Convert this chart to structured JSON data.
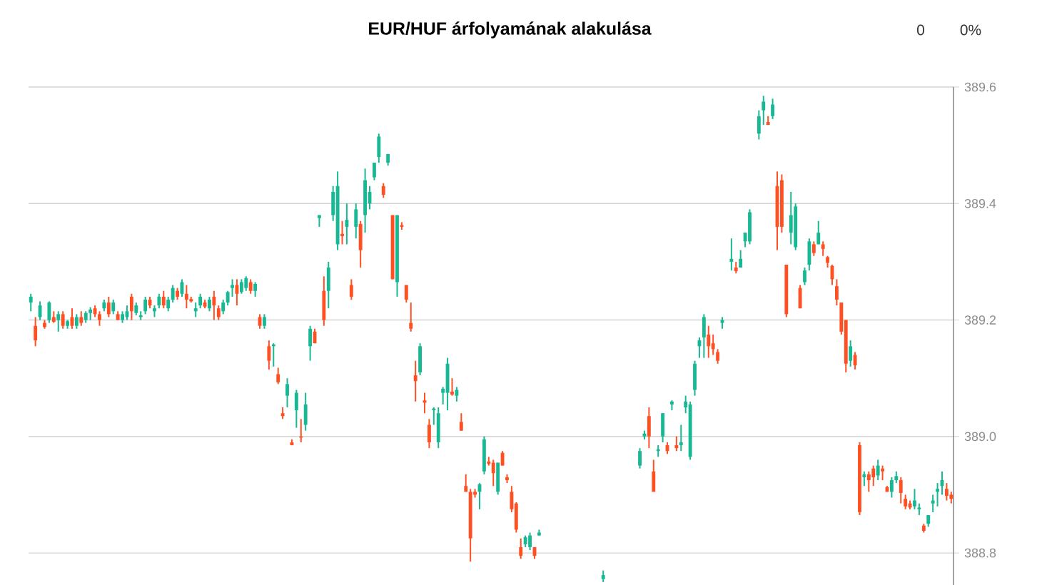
{
  "chart_data": {
    "type": "candlestick",
    "title": "EUR/HUF árfolyamának alakulása",
    "annotations": [
      "0",
      "0%"
    ],
    "ylim": [
      388.745,
      389.6
    ],
    "yticks": [
      388.8,
      {
        "value": 389,
        "label": "389.0"
      },
      389.2,
      389.4,
      389.6
    ],
    "grid": "y",
    "tick_labels": "y",
    "ohlc": [
      [
        389.23,
        389.245,
        389.215,
        389.24
      ],
      [
        389.19,
        389.205,
        389.155,
        389.165
      ],
      [
        389.205,
        389.232,
        389.2,
        389.225
      ],
      [
        389.195,
        389.2,
        389.185,
        389.188
      ],
      [
        389.2,
        389.232,
        389.195,
        389.23
      ],
      [
        389.205,
        389.215,
        389.195,
        389.197
      ],
      [
        389.2,
        389.215,
        389.18,
        389.21
      ],
      [
        389.21,
        389.215,
        389.185,
        389.19
      ],
      [
        389.19,
        389.2,
        389.185,
        389.198
      ],
      [
        389.205,
        389.22,
        389.185,
        389.19
      ],
      [
        389.19,
        389.21,
        389.185,
        389.205
      ],
      [
        389.205,
        389.215,
        389.19,
        389.195
      ],
      [
        389.2,
        389.215,
        389.195,
        389.212
      ],
      [
        389.212,
        389.222,
        389.2,
        389.218
      ],
      [
        389.22,
        389.225,
        389.205,
        389.21
      ],
      [
        389.21,
        389.215,
        389.19,
        389.2
      ],
      [
        389.22,
        389.235,
        389.215,
        389.23
      ],
      [
        389.23,
        389.24,
        389.205,
        389.21
      ],
      [
        389.215,
        389.235,
        389.21,
        389.23
      ],
      [
        389.21,
        389.215,
        389.2,
        389.2
      ],
      [
        389.2,
        389.215,
        389.195,
        389.21
      ],
      [
        389.205,
        389.225,
        389.2,
        389.215
      ],
      [
        389.24,
        389.245,
        389.2,
        389.215
      ],
      [
        389.212,
        389.23,
        389.208,
        389.225
      ],
      [
        389.205,
        389.215,
        389.2,
        389.208
      ],
      [
        389.215,
        389.24,
        389.21,
        389.235
      ],
      [
        389.235,
        389.24,
        389.22,
        389.225
      ],
      [
        389.215,
        389.225,
        389.205,
        389.22
      ],
      [
        389.225,
        389.245,
        389.22,
        389.24
      ],
      [
        389.24,
        389.25,
        389.22,
        389.225
      ],
      [
        389.22,
        389.24,
        389.215,
        389.235
      ],
      [
        389.235,
        389.26,
        389.23,
        389.255
      ],
      [
        389.25,
        389.255,
        389.235,
        389.24
      ],
      [
        389.245,
        389.27,
        389.24,
        389.265
      ],
      [
        389.245,
        389.26,
        389.22,
        389.235
      ],
      [
        389.236,
        389.24,
        389.23,
        389.232
      ],
      [
        389.215,
        389.23,
        389.205,
        389.22
      ],
      [
        389.225,
        389.245,
        389.22,
        389.24
      ],
      [
        389.23,
        389.235,
        389.22,
        389.223
      ],
      [
        389.22,
        389.24,
        389.215,
        389.235
      ],
      [
        389.24,
        389.25,
        389.2,
        389.225
      ],
      [
        389.22,
        389.225,
        389.2,
        389.205
      ],
      [
        389.215,
        389.235,
        389.21,
        389.23
      ],
      [
        389.23,
        389.25,
        389.225,
        389.248
      ],
      [
        389.255,
        389.27,
        389.24,
        389.26
      ],
      [
        389.26,
        389.27,
        389.225,
        389.245
      ],
      [
        389.248,
        389.27,
        389.245,
        389.265
      ],
      [
        389.255,
        389.275,
        389.25,
        389.272
      ],
      [
        389.265,
        389.27,
        389.245,
        389.25
      ],
      [
        389.25,
        389.265,
        389.24,
        389.262
      ],
      [
        389.205,
        389.21,
        389.185,
        389.19
      ],
      [
        389.19,
        389.21,
        389.185,
        389.205
      ],
      [
        389.155,
        389.165,
        389.115,
        389.13
      ],
      [
        389.155,
        389.16,
        389.12,
        389.158
      ],
      [
        389.107,
        389.118,
        389.09,
        389.093
      ],
      [
        389.04,
        389.05,
        389.03,
        389.035
      ],
      [
        389.07,
        389.1,
        389.05,
        389.09
      ],
      [
        388.99,
        388.995,
        388.985,
        388.985
      ],
      [
        389.045,
        389.08,
        389.015,
        389.075
      ],
      [
        389.0,
        389.03,
        388.99,
        388.998
      ],
      [
        389.02,
        389.075,
        389.01,
        389.055
      ],
      [
        389.155,
        389.19,
        389.13,
        389.185
      ],
      [
        389.18,
        389.185,
        389.16,
        389.16
      ],
      [
        389.375,
        389.38,
        389.36,
        389.38
      ],
      [
        389.25,
        389.275,
        389.19,
        389.2
      ],
      [
        389.25,
        389.3,
        389.22,
        389.29
      ],
      [
        389.38,
        389.43,
        389.37,
        389.42
      ],
      [
        389.33,
        389.455,
        389.32,
        389.43
      ],
      [
        389.348,
        389.37,
        389.33,
        389.344
      ],
      [
        389.36,
        389.4,
        389.33,
        389.372
      ],
      [
        389.26,
        389.27,
        389.235,
        389.24
      ],
      [
        389.36,
        389.4,
        389.34,
        389.39
      ],
      [
        389.365,
        389.37,
        389.29,
        389.32
      ],
      [
        389.38,
        389.46,
        389.35,
        389.44
      ],
      [
        389.4,
        389.43,
        389.39,
        389.42
      ],
      [
        389.445,
        389.47,
        389.44,
        389.47
      ],
      [
        389.48,
        389.52,
        389.47,
        389.515
      ],
      [
        389.43,
        389.435,
        389.41,
        389.415
      ],
      [
        389.47,
        389.485,
        389.465,
        389.485
      ],
      [
        389.38,
        389.38,
        389.27,
        389.27
      ],
      [
        389.265,
        389.38,
        389.24,
        389.38
      ],
      [
        389.363,
        389.368,
        389.355,
        389.36
      ],
      [
        389.26,
        389.26,
        389.23,
        389.235
      ],
      [
        389.195,
        389.23,
        389.18,
        389.185
      ],
      [
        389.105,
        389.13,
        389.06,
        389.095
      ],
      [
        389.11,
        389.16,
        389.105,
        389.155
      ],
      [
        389.062,
        389.075,
        389.04,
        389.058
      ],
      [
        389.02,
        389.03,
        388.98,
        388.99
      ],
      [
        389.045,
        389.05,
        389.02,
        389.048
      ],
      [
        388.99,
        389.05,
        388.98,
        389.04
      ],
      [
        389.075,
        389.085,
        389.055,
        389.082
      ],
      [
        389.075,
        389.135,
        389.045,
        389.125
      ],
      [
        389.077,
        389.1,
        389.07,
        389.072
      ],
      [
        389.07,
        389.085,
        389.06,
        389.08
      ],
      [
        389.025,
        389.04,
        389.01,
        389.01
      ],
      [
        388.915,
        388.935,
        388.905,
        388.905
      ],
      [
        388.905,
        388.91,
        388.785,
        388.825
      ],
      [
        388.905,
        388.91,
        388.895,
        388.9
      ],
      [
        388.905,
        388.92,
        388.875,
        388.918
      ],
      [
        388.94,
        389.0,
        388.935,
        388.995
      ],
      [
        388.957,
        388.965,
        388.95,
        388.953
      ],
      [
        388.955,
        388.96,
        388.915,
        388.937
      ],
      [
        388.905,
        388.955,
        388.9,
        388.955
      ],
      [
        388.972,
        388.975,
        388.95,
        388.95
      ],
      [
        388.93,
        388.935,
        388.92,
        388.925
      ],
      [
        388.905,
        388.915,
        388.87,
        388.875
      ],
      [
        388.885,
        388.887,
        388.835,
        388.84
      ],
      [
        388.81,
        388.825,
        388.79,
        388.795
      ],
      [
        388.815,
        388.83,
        388.81,
        388.827
      ],
      [
        388.81,
        388.835,
        388.805,
        388.83
      ],
      [
        388.81,
        388.81,
        388.79,
        388.795
      ],
      [
        388.83,
        388.84,
        388.83,
        388.835
      ],
      null,
      null,
      null,
      null,
      null,
      null,
      null,
      null,
      null,
      null,
      null,
      null,
      null,
      [
        388.755,
        388.77,
        388.75,
        388.762
      ],
      null,
      null,
      null,
      null,
      null,
      null,
      null,
      [
        388.95,
        388.98,
        388.945,
        388.975
      ],
      [
        389.0,
        389.01,
        388.995,
        389.005
      ],
      [
        389.035,
        389.05,
        388.98,
        389.0
      ],
      [
        388.94,
        388.96,
        388.905,
        388.905
      ],
      [
        388.975,
        388.985,
        388.965,
        388.978
      ],
      [
        389.0,
        389.04,
        388.99,
        389.04
      ],
      [
        388.985,
        388.99,
        388.97,
        388.975
      ],
      [
        389.055,
        389.062,
        389.045,
        389.06
      ],
      [
        388.985,
        389.0,
        388.975,
        388.98
      ],
      [
        388.985,
        389.02,
        388.975,
        388.99
      ],
      [
        389.05,
        389.07,
        389.04,
        389.06
      ],
      [
        388.965,
        389.06,
        388.96,
        389.055
      ],
      [
        389.08,
        389.13,
        389.07,
        389.125
      ],
      [
        389.155,
        389.17,
        389.135,
        389.165
      ],
      [
        389.17,
        389.21,
        389.135,
        389.205
      ],
      [
        389.175,
        389.19,
        389.135,
        389.155
      ],
      [
        389.16,
        389.175,
        389.14,
        389.15
      ],
      [
        389.145,
        389.15,
        389.125,
        389.13
      ],
      [
        389.195,
        389.205,
        389.185,
        389.2
      ],
      null,
      [
        389.3,
        389.34,
        389.285,
        389.305
      ],
      [
        389.29,
        389.3,
        389.28,
        389.284
      ],
      [
        389.29,
        389.32,
        389.29,
        389.305
      ],
      [
        389.335,
        389.35,
        389.325,
        389.35
      ],
      [
        389.335,
        389.39,
        389.33,
        389.385
      ],
      null,
      [
        389.52,
        389.56,
        389.51,
        389.55
      ],
      [
        389.56,
        389.585,
        389.535,
        389.575
      ],
      [
        389.54,
        389.55,
        389.535,
        389.535
      ],
      [
        389.55,
        389.58,
        389.545,
        389.57
      ],
      [
        389.43,
        389.455,
        389.32,
        389.36
      ],
      [
        389.44,
        389.45,
        389.35,
        389.36
      ],
      [
        389.295,
        389.295,
        389.205,
        389.21
      ],
      [
        389.35,
        389.42,
        389.33,
        389.38
      ],
      [
        389.325,
        389.4,
        389.32,
        389.395
      ],
      [
        389.255,
        389.26,
        389.22,
        389.22
      ],
      [
        389.265,
        389.29,
        389.26,
        389.285
      ],
      [
        389.295,
        389.34,
        389.285,
        389.335
      ],
      [
        389.33,
        389.335,
        389.31,
        389.315
      ],
      [
        389.33,
        389.37,
        389.33,
        389.35
      ],
      [
        389.33,
        389.335,
        389.31,
        389.322
      ],
      [
        389.308,
        389.31,
        389.29,
        389.298
      ],
      [
        389.293,
        389.295,
        389.26,
        389.27
      ],
      [
        389.258,
        389.27,
        389.225,
        389.235
      ],
      [
        389.23,
        389.23,
        389.175,
        389.18
      ],
      [
        389.2,
        389.2,
        389.11,
        389.125
      ],
      [
        389.13,
        389.165,
        389.12,
        389.155
      ],
      [
        389.14,
        389.145,
        389.115,
        389.122
      ],
      [
        388.985,
        388.99,
        388.865,
        388.87
      ],
      [
        388.93,
        388.94,
        388.915,
        388.935
      ],
      [
        388.935,
        388.94,
        388.905,
        388.925
      ],
      [
        388.945,
        388.95,
        388.915,
        388.93
      ],
      [
        388.933,
        388.96,
        388.925,
        388.95
      ],
      [
        388.945,
        388.95,
        388.925,
        388.94
      ],
      [
        388.913,
        388.915,
        388.905,
        388.905
      ],
      [
        388.905,
        388.93,
        388.895,
        388.925
      ],
      [
        388.925,
        388.94,
        388.92,
        388.932
      ],
      [
        388.925,
        388.93,
        388.885,
        388.903
      ],
      [
        388.893,
        388.9,
        388.875,
        388.88
      ],
      [
        388.885,
        388.89,
        388.875,
        388.878
      ],
      [
        388.88,
        388.91,
        388.875,
        388.89
      ],
      [
        388.875,
        388.885,
        388.865,
        388.878
      ],
      [
        388.847,
        388.85,
        388.835,
        388.838
      ],
      [
        388.85,
        388.865,
        388.845,
        388.865
      ],
      [
        388.885,
        388.9,
        388.87,
        388.89
      ],
      [
        388.905,
        388.92,
        388.88,
        388.91
      ],
      [
        388.915,
        388.94,
        388.9,
        388.925
      ],
      [
        388.91,
        388.92,
        388.89,
        388.898
      ],
      [
        388.9,
        388.905,
        388.885,
        388.893
      ]
    ],
    "categories": [
      null,
      null,
      null,
      null,
      null,
      null,
      null,
      null,
      null,
      null,
      null,
      null,
      null,
      null,
      null,
      null,
      null,
      null,
      null,
      null,
      null,
      null,
      null,
      null,
      null,
      null,
      null,
      null,
      null,
      null,
      null,
      null,
      null,
      null,
      null,
      null,
      null,
      null,
      null,
      null,
      null,
      null,
      null,
      null,
      null,
      null,
      null,
      null,
      null,
      null,
      null,
      null,
      null,
      null,
      null,
      null,
      null,
      null,
      null,
      null,
      null,
      null,
      null,
      null,
      null,
      null,
      null,
      null,
      null,
      null,
      null,
      null,
      null,
      null,
      null,
      null,
      null,
      null,
      null,
      null,
      null,
      null,
      null,
      null,
      null,
      null,
      null,
      null,
      null,
      null,
      null,
      null,
      null,
      null,
      null,
      null,
      null,
      null,
      null,
      null,
      null,
      null,
      null,
      null,
      null,
      null,
      null,
      null,
      null,
      null,
      null,
      null,
      null,
      null,
      null,
      null,
      null,
      null,
      null,
      null,
      null,
      null,
      null,
      null,
      null,
      null,
      null,
      null,
      null,
      null,
      null,
      null,
      null,
      null,
      null,
      null,
      null,
      null,
      null,
      null,
      null,
      null,
      null,
      null,
      null,
      null,
      null,
      null,
      null,
      null,
      null,
      null,
      null,
      null,
      null,
      null,
      null,
      null,
      null,
      null,
      null,
      null,
      null,
      null,
      null,
      null,
      null,
      null,
      null,
      null,
      null,
      null,
      null,
      null,
      null,
      null,
      null,
      null,
      null,
      null,
      null,
      null,
      null,
      null,
      null,
      null,
      null,
      null,
      null,
      null,
      null,
      null,
      null,
      null,
      null,
      null,
      null,
      null,
      null,
      null,
      null,
      null
    ]
  }
}
